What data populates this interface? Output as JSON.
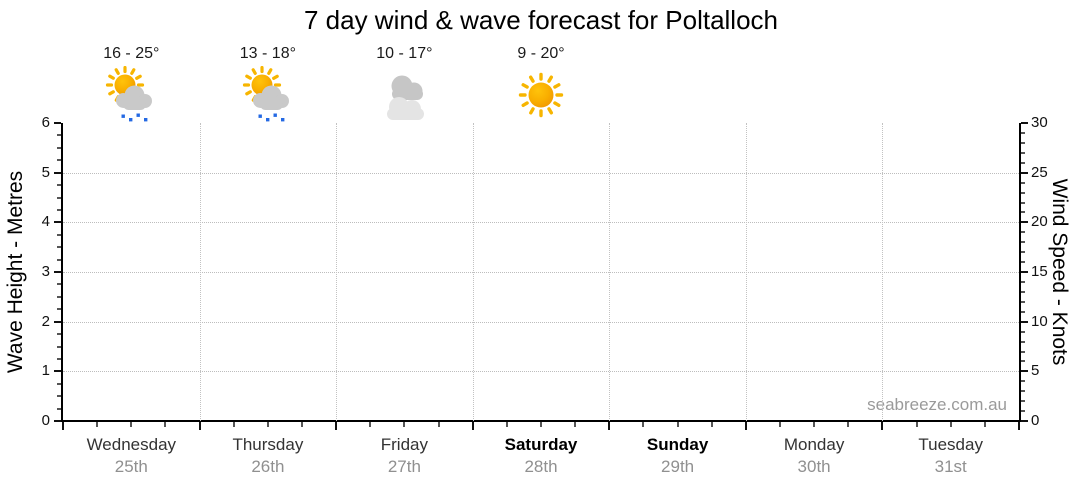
{
  "title": "7 day wind & wave forecast for Poltalloch",
  "watermark": "seabreeze.com.au",
  "axes": {
    "left": {
      "label": "Wave Height - Metres",
      "range": [
        0,
        6
      ],
      "ticks": [
        0,
        1,
        2,
        3,
        4,
        5,
        6
      ]
    },
    "right": {
      "label": "Wind Speed - Knots",
      "range": [
        0,
        30
      ],
      "ticks": [
        0,
        5,
        10,
        15,
        20,
        25,
        30
      ]
    }
  },
  "days": [
    {
      "name": "Wednesday",
      "date": "25th",
      "temp": "16 - 25°",
      "icon": "sun-cloud-rain",
      "emphasis": false
    },
    {
      "name": "Thursday",
      "date": "26th",
      "temp": "13 - 18°",
      "icon": "sun-cloud-rain",
      "emphasis": false
    },
    {
      "name": "Friday",
      "date": "27th",
      "temp": "10 - 17°",
      "icon": "clouds",
      "emphasis": false
    },
    {
      "name": "Saturday",
      "date": "28th",
      "temp": "9 - 20°",
      "icon": "sun",
      "emphasis": true
    },
    {
      "name": "Sunday",
      "date": "29th",
      "temp": null,
      "icon": null,
      "emphasis": true
    },
    {
      "name": "Monday",
      "date": "30th",
      "temp": null,
      "icon": null,
      "emphasis": false
    },
    {
      "name": "Tuesday",
      "date": "31st",
      "temp": null,
      "icon": null,
      "emphasis": false
    }
  ],
  "colors": {
    "sun_core": "#FFC30B",
    "sun_edge": "#EF9400",
    "sun_ray": "#F7B500",
    "cloud": "#C9C9C9",
    "cloud_back": "#C6C6C6",
    "cloud_front": "#E4E4E4",
    "rain": "#2469E3",
    "grid": "#BDBDBD",
    "axis": "#000000",
    "date_text": "#909090",
    "watermark_text": "#9A9A9A"
  },
  "chart_data": {
    "type": "line",
    "title": "7 day wind & wave forecast for Poltalloch",
    "categories": [
      "Wednesday 25th",
      "Thursday 26th",
      "Friday 27th",
      "Saturday 28th",
      "Sunday 29th",
      "Monday 30th",
      "Tuesday 31st"
    ],
    "series": [],
    "left_axis": {
      "label": "Wave Height - Metres",
      "range": [
        0,
        6
      ],
      "ticks": [
        0,
        1,
        2,
        3,
        4,
        5,
        6
      ]
    },
    "right_axis": {
      "label": "Wind Speed - Knots",
      "range": [
        0,
        30
      ],
      "ticks": [
        0,
        5,
        10,
        15,
        20,
        25,
        30
      ]
    },
    "grid": true,
    "legend": false,
    "annotations": {
      "temperatures": [
        "16 - 25°",
        "13 - 18°",
        "10 - 17°",
        "9 - 20°",
        null,
        null,
        null
      ],
      "weather_icons": [
        "sun-cloud-rain",
        "sun-cloud-rain",
        "clouds",
        "sun",
        null,
        null,
        null
      ]
    }
  }
}
